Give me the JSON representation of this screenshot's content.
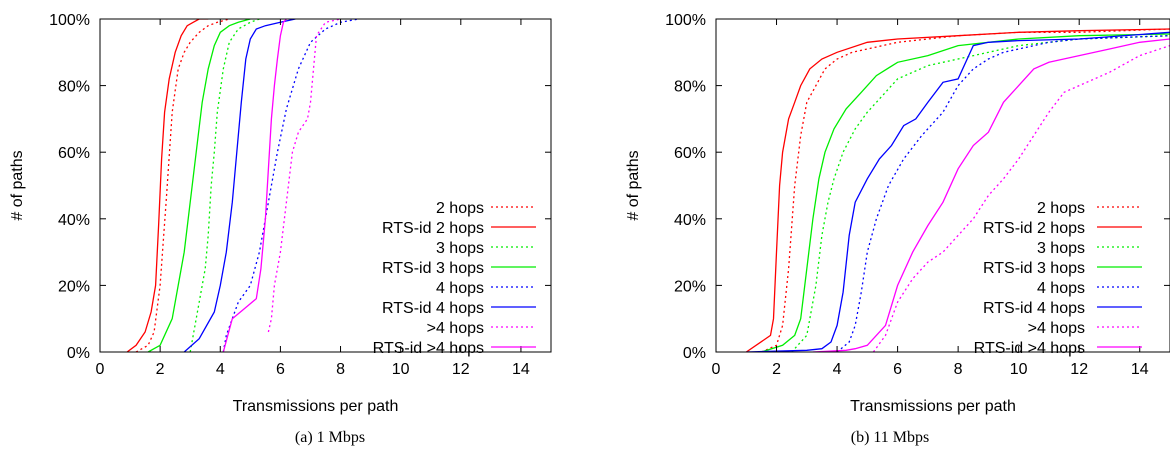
{
  "chart_data": [
    {
      "type": "line",
      "caption": "(a)  1 Mbps",
      "xlabel": "Transmissions per path",
      "ylabel": "# of paths",
      "xlim": [
        0,
        15
      ],
      "ylim": [
        0,
        100
      ],
      "xticks": [
        "0",
        "2",
        "4",
        "6",
        "8",
        "10",
        "12",
        "14"
      ],
      "yticks": [
        "0%",
        "20%",
        "40%",
        "60%",
        "80%",
        "100%"
      ],
      "grid": false,
      "legend_position": "bottom-right",
      "series": [
        {
          "name": "2 hops",
          "color": "#ff0000",
          "dash": "dotted",
          "x": [
            1.2,
            1.6,
            1.8,
            2.0,
            2.2,
            2.4,
            2.6,
            2.8,
            3.0,
            3.3,
            3.6,
            3.9,
            4.3
          ],
          "y": [
            0,
            2,
            6,
            20,
            45,
            72,
            85,
            90,
            93,
            96,
            98,
            99,
            100
          ]
        },
        {
          "name": "RTS-id 2 hops",
          "color": "#ff0000",
          "dash": "solid",
          "x": [
            0.9,
            1.2,
            1.5,
            1.7,
            1.85,
            1.95,
            2.05,
            2.15,
            2.3,
            2.5,
            2.7,
            2.9,
            3.1,
            3.3,
            3.6
          ],
          "y": [
            0,
            2,
            6,
            12,
            20,
            38,
            58,
            72,
            82,
            90,
            95,
            98,
            99,
            100,
            100
          ]
        },
        {
          "name": "3 hops",
          "color": "#00ee00",
          "dash": "dotted",
          "x": [
            3.0,
            3.1,
            3.3,
            3.5,
            3.6,
            3.7,
            3.8,
            3.9,
            4.1,
            4.3,
            4.6,
            5.0,
            5.3
          ],
          "y": [
            0,
            5,
            15,
            25,
            35,
            50,
            60,
            72,
            85,
            93,
            97,
            99,
            100
          ]
        },
        {
          "name": "RTS-id 3 hops",
          "color": "#00ee00",
          "dash": "solid",
          "x": [
            1.6,
            2.0,
            2.4,
            2.6,
            2.8,
            3.0,
            3.2,
            3.4,
            3.6,
            3.8,
            4.0,
            4.3,
            4.6,
            5.0
          ],
          "y": [
            0,
            2,
            10,
            20,
            30,
            45,
            60,
            75,
            85,
            92,
            96,
            98,
            99,
            100
          ]
        },
        {
          "name": "4 hops",
          "color": "#0000ff",
          "dash": "dotted",
          "x": [
            4.1,
            4.2,
            4.4,
            4.6,
            5.0,
            5.3,
            5.5,
            5.7,
            5.9,
            6.2,
            6.6,
            7.0,
            7.5,
            8.0,
            8.6
          ],
          "y": [
            0,
            5,
            10,
            15,
            20,
            30,
            40,
            50,
            60,
            73,
            85,
            93,
            97,
            99,
            100
          ]
        },
        {
          "name": "RTS-id 4 hops",
          "color": "#0000ff",
          "dash": "solid",
          "x": [
            2.8,
            3.3,
            3.8,
            4.0,
            4.2,
            4.4,
            4.55,
            4.7,
            4.85,
            5.0,
            5.2,
            5.5,
            6.0,
            6.5
          ],
          "y": [
            0,
            4,
            12,
            20,
            30,
            45,
            60,
            75,
            88,
            94,
            97,
            98,
            99,
            100
          ]
        },
        {
          "name": ">4 hops",
          "color": "#ff00ff",
          "dash": "dotted",
          "x": [
            5.6,
            5.7,
            5.8,
            6.0,
            6.2,
            6.4,
            6.6,
            6.9,
            7.0,
            7.1,
            7.2,
            7.5,
            8.0
          ],
          "y": [
            6,
            10,
            20,
            30,
            45,
            60,
            66,
            70,
            75,
            85,
            95,
            99,
            100
          ]
        },
        {
          "name": "RTS-id >4 hops",
          "color": "#ff00ff",
          "dash": "solid",
          "x": [
            4.1,
            4.4,
            4.8,
            5.2,
            5.35,
            5.5,
            5.6,
            5.7,
            5.8,
            5.9,
            6.0,
            6.1,
            6.2
          ],
          "y": [
            0,
            10,
            13,
            16,
            25,
            40,
            55,
            70,
            80,
            88,
            95,
            99,
            100
          ]
        }
      ]
    },
    {
      "type": "line",
      "caption": "(b)  11 Mbps",
      "xlabel": "Transmissions per path",
      "ylabel": "# of paths",
      "xlim": [
        0,
        15
      ],
      "ylim": [
        0,
        100
      ],
      "xticks": [
        "0",
        "2",
        "4",
        "6",
        "8",
        "10",
        "12",
        "14"
      ],
      "yticks": [
        "0%",
        "20%",
        "40%",
        "60%",
        "80%",
        "100%"
      ],
      "grid": false,
      "legend_position": "bottom-right",
      "series": [
        {
          "name": "2 hops",
          "color": "#ff0000",
          "dash": "dotted",
          "x": [
            1.5,
            2.0,
            2.2,
            2.4,
            2.6,
            2.8,
            3.0,
            3.3,
            3.6,
            4.0,
            4.5,
            5.0,
            6.0,
            8.0,
            10.0,
            12.0,
            15.0
          ],
          "y": [
            0,
            2,
            8,
            25,
            50,
            65,
            75,
            80,
            85,
            88,
            90,
            91,
            93,
            95,
            96,
            96,
            97
          ]
        },
        {
          "name": "RTS-id 2 hops",
          "color": "#ff0000",
          "dash": "solid",
          "x": [
            1.0,
            1.8,
            1.9,
            2.0,
            2.1,
            2.2,
            2.4,
            2.6,
            2.8,
            3.1,
            3.5,
            4.0,
            5.0,
            6.0,
            8.0,
            10.0,
            12.0,
            15.0
          ],
          "y": [
            0,
            5,
            10,
            30,
            50,
            60,
            70,
            75,
            80,
            85,
            88,
            90,
            93,
            94,
            95,
            96,
            96.5,
            97
          ]
        },
        {
          "name": "3 hops",
          "color": "#00ee00",
          "dash": "dotted",
          "x": [
            2.5,
            3.0,
            3.3,
            3.5,
            3.7,
            3.9,
            4.2,
            4.6,
            5.0,
            5.5,
            6.0,
            7.0,
            8.0,
            10.0,
            12.0,
            15.0
          ],
          "y": [
            0,
            5,
            20,
            35,
            45,
            52,
            60,
            67,
            72,
            77,
            82,
            86,
            88,
            92,
            94,
            95
          ]
        },
        {
          "name": "RTS-id 3 hops",
          "color": "#00ee00",
          "dash": "solid",
          "x": [
            1.5,
            2.2,
            2.6,
            2.8,
            3.0,
            3.2,
            3.4,
            3.6,
            3.9,
            4.3,
            4.8,
            5.3,
            6.0,
            7.0,
            8.0,
            10.0,
            12.0,
            15.0
          ],
          "y": [
            0,
            2,
            5,
            10,
            25,
            40,
            52,
            60,
            67,
            73,
            78,
            83,
            87,
            89,
            92,
            94,
            95,
            95.5
          ]
        },
        {
          "name": "4 hops",
          "color": "#0000ff",
          "dash": "dotted",
          "x": [
            4.0,
            4.4,
            4.6,
            4.8,
            5.0,
            5.3,
            5.7,
            6.2,
            6.8,
            7.5,
            8.0,
            8.5,
            9.0,
            9.5,
            10.0,
            11.0,
            12.0,
            15.0
          ],
          "y": [
            0,
            3,
            8,
            18,
            30,
            40,
            50,
            58,
            65,
            72,
            80,
            85,
            88,
            90,
            91,
            93,
            94,
            95
          ]
        },
        {
          "name": "RTS-id 4 hops",
          "color": "#0000ff",
          "dash": "solid",
          "x": [
            1.0,
            3.0,
            3.5,
            3.8,
            4.0,
            4.2,
            4.4,
            4.6,
            5.0,
            5.4,
            5.8,
            6.2,
            6.6,
            7.0,
            7.5,
            8.0,
            8.5,
            9.0,
            10.0,
            12.0,
            15.0
          ],
          "y": [
            0,
            0.5,
            1,
            3,
            8,
            18,
            35,
            45,
            52,
            58,
            62,
            68,
            70,
            75,
            81,
            82,
            92,
            93,
            93.5,
            94,
            96
          ]
        },
        {
          "name": ">4 hops",
          "color": "#ff00ff",
          "dash": "dotted",
          "x": [
            5.2,
            5.6,
            6.0,
            6.5,
            7.0,
            7.5,
            8.0,
            8.5,
            9.0,
            9.5,
            10.0,
            10.5,
            11.0,
            11.5,
            12.0,
            13.0,
            14.0,
            15.0
          ],
          "y": [
            0,
            5,
            15,
            22,
            27,
            30,
            35,
            40,
            47,
            52,
            58,
            65,
            72,
            78,
            80,
            84,
            89,
            92
          ]
        },
        {
          "name": "RTS-id >4 hops",
          "color": "#ff00ff",
          "dash": "solid",
          "x": [
            3.2,
            4.3,
            4.6,
            5.0,
            5.6,
            6.0,
            6.5,
            7.0,
            7.5,
            8.0,
            8.5,
            9.0,
            9.5,
            10.0,
            10.5,
            11.0,
            12.0,
            13.0,
            14.0,
            15.0
          ],
          "y": [
            0,
            0.5,
            1,
            2,
            8,
            20,
            30,
            38,
            45,
            55,
            62,
            66,
            75,
            80,
            85,
            87,
            89,
            91,
            93,
            94
          ]
        }
      ]
    }
  ]
}
